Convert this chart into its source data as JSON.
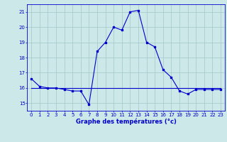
{
  "xlabel": "Graphe des températures (°c)",
  "bg_color": "#cce8e8",
  "grid_color": "#aacccc",
  "line_color": "#0000cc",
  "hours": [
    0,
    1,
    2,
    3,
    4,
    5,
    6,
    7,
    8,
    9,
    10,
    11,
    12,
    13,
    14,
    15,
    16,
    17,
    18,
    19,
    20,
    21,
    22,
    23
  ],
  "temps_main": [
    16.6,
    16.1,
    16.0,
    16.0,
    15.9,
    15.8,
    15.8,
    14.9,
    18.4,
    19.0,
    20.0,
    19.8,
    21.0,
    21.1,
    19.0,
    18.7,
    17.2,
    16.7,
    15.8,
    15.6,
    15.9,
    15.9,
    15.9,
    15.9
  ],
  "temps_flat": [
    16.0,
    16.0,
    16.0,
    16.0,
    16.0,
    16.0,
    16.0,
    16.0,
    16.0,
    16.0,
    16.0,
    16.0,
    16.0,
    16.0,
    16.0,
    16.0,
    16.0,
    16.0,
    16.0,
    16.0,
    16.0,
    16.0,
    16.0,
    16.0
  ],
  "ylim": [
    14.5,
    21.5
  ],
  "yticks": [
    15,
    16,
    17,
    18,
    19,
    20,
    21
  ],
  "xlim": [
    -0.5,
    23.5
  ],
  "tick_fontsize": 5.0,
  "xlabel_fontsize": 6.0
}
